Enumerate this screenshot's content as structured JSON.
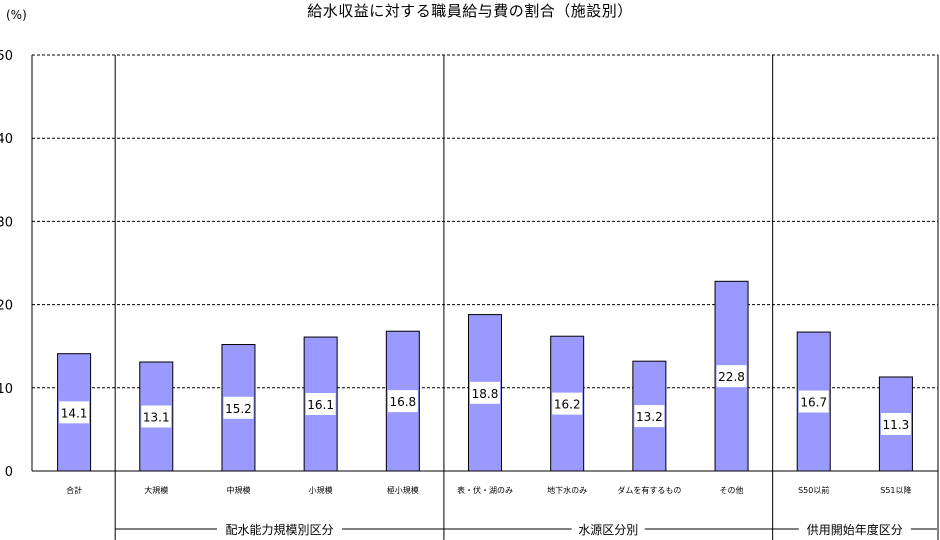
{
  "chart_data": {
    "type": "bar",
    "title": "給水収益に対する職員給与費の割合（施設別）",
    "ylabel": "(%)",
    "ylim": [
      0,
      50
    ],
    "yticks": [
      0,
      10,
      20,
      30,
      40,
      50
    ],
    "grid": true,
    "categories": [
      "合計",
      "大規模",
      "中規模",
      "小規模",
      "極小規模",
      "表・伏・湖のみ",
      "地下水のみ",
      "ダムを有するもの",
      "その他",
      "S50以前",
      "S51以降"
    ],
    "values": [
      14.1,
      13.1,
      15.2,
      16.1,
      16.8,
      18.8,
      16.2,
      13.2,
      22.8,
      16.7,
      11.3
    ],
    "value_labels": [
      "14.1",
      "13.1",
      "15.2",
      "16.1",
      "16.8",
      "18.8",
      "16.2",
      "13.2",
      "22.8",
      "16.7",
      "11.3"
    ],
    "groups": [
      {
        "label": "配水能力規模別区分",
        "categories": [
          "大規模",
          "中規模",
          "小規模",
          "極小規模"
        ]
      },
      {
        "label": "水源区分別",
        "categories": [
          "表・伏・湖のみ",
          "地下水のみ",
          "ダムを有するもの",
          "その他"
        ]
      },
      {
        "label": "供用開始年度区分",
        "categories": [
          "S50以前",
          "S51以降"
        ]
      }
    ],
    "colors": {
      "bar": "#9999ff",
      "bar_border": "#000000",
      "grid": "#000000",
      "label_box": "#ffffff"
    }
  }
}
